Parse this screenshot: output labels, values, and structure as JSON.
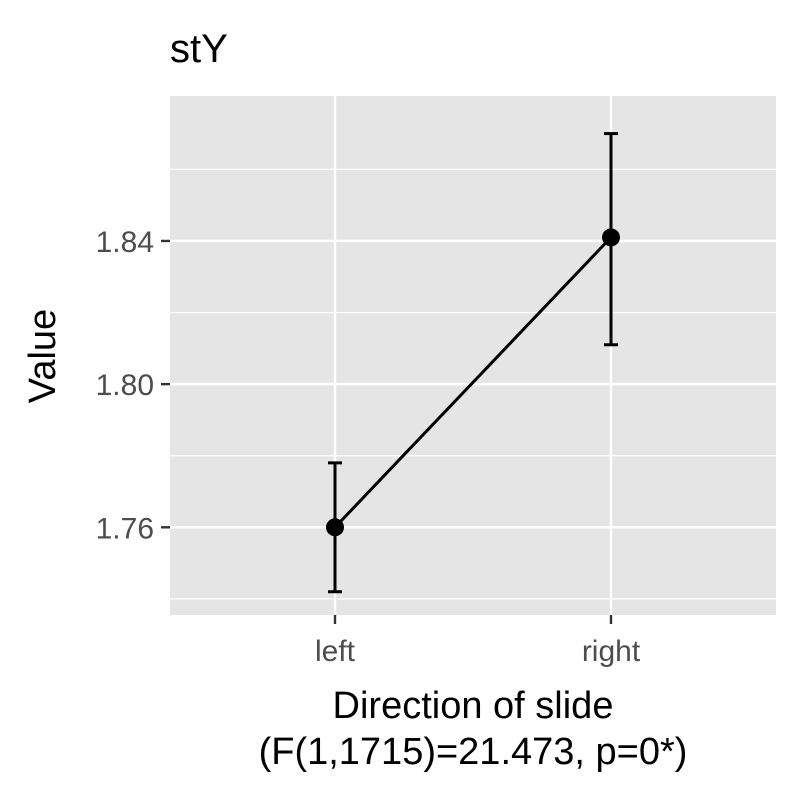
{
  "chart_data": {
    "type": "line",
    "title": "stY",
    "xlabel": "Direction of slide",
    "xlabel_sub": "(F(1,1715)=21.473, p=0*)",
    "ylabel": "Value",
    "categories": [
      "left",
      "right"
    ],
    "values": [
      1.76,
      1.841
    ],
    "error_lower": [
      1.742,
      1.811
    ],
    "error_upper": [
      1.778,
      1.87
    ],
    "ylim": [
      1.7355,
      1.8805
    ],
    "y_ticks": [
      1.76,
      1.8,
      1.84
    ],
    "y_tick_labels": [
      "1.76",
      "1.80",
      "1.84"
    ],
    "y_minor_ticks": [
      1.74,
      1.78,
      1.82,
      1.86
    ],
    "grid": true,
    "legend": "none",
    "colors": {
      "panel_background": "#e5e5e5",
      "grid": "#ffffff",
      "line": "#000000",
      "point": "#000000",
      "axis_text": "#4d4d4d",
      "tick": "#333333",
      "title_text": "#000000"
    }
  }
}
